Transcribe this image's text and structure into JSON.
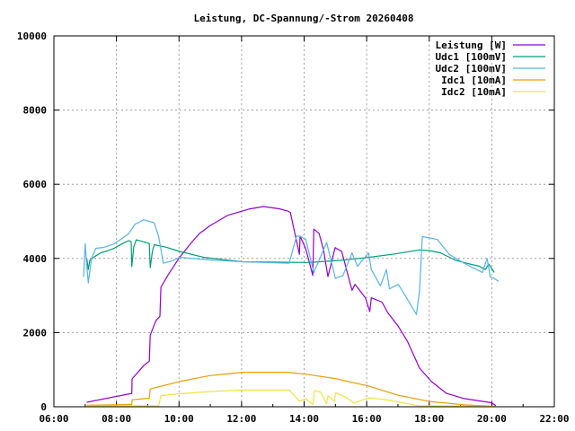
{
  "chart_data": {
    "type": "line",
    "title": "Leistung, DC-Spannung/-Strom 20260408",
    "xlabel": "",
    "ylabel": "",
    "xlim": [
      6,
      22
    ],
    "ylim": [
      0,
      10000
    ],
    "grid": true,
    "legend_position": "top-right",
    "x_ticks": [
      {
        "value": 6,
        "label": "06:00"
      },
      {
        "value": 8,
        "label": "08:00"
      },
      {
        "value": 10,
        "label": "10:00"
      },
      {
        "value": 12,
        "label": "12:00"
      },
      {
        "value": 14,
        "label": "14:00"
      },
      {
        "value": 16,
        "label": "16:00"
      },
      {
        "value": 18,
        "label": "18:00"
      },
      {
        "value": 20,
        "label": "20:00"
      },
      {
        "value": 22,
        "label": "22:00"
      }
    ],
    "y_ticks": [
      {
        "value": 0,
        "label": "0"
      },
      {
        "value": 2000,
        "label": "2000"
      },
      {
        "value": 4000,
        "label": "4000"
      },
      {
        "value": 6000,
        "label": "6000"
      },
      {
        "value": 8000,
        "label": "8000"
      },
      {
        "value": 10000,
        "label": "10000"
      }
    ],
    "series": [
      {
        "name": "Leistung [W]",
        "color": "#9400d3",
        "points": [
          [
            7.05,
            120
          ],
          [
            8.49,
            360
          ],
          [
            8.5,
            750
          ],
          [
            8.87,
            1110
          ],
          [
            9.05,
            1230
          ],
          [
            9.08,
            1930
          ],
          [
            9.26,
            2320
          ],
          [
            9.39,
            2440
          ],
          [
            9.42,
            3220
          ],
          [
            9.64,
            3540
          ],
          [
            10.02,
            4030
          ],
          [
            10.4,
            4430
          ],
          [
            10.65,
            4670
          ],
          [
            10.97,
            4870
          ],
          [
            11.55,
            5160
          ],
          [
            12.23,
            5330
          ],
          [
            12.7,
            5400
          ],
          [
            13.2,
            5340
          ],
          [
            13.47,
            5280
          ],
          [
            13.56,
            5240
          ],
          [
            13.66,
            4840
          ],
          [
            13.85,
            4110
          ],
          [
            13.87,
            4600
          ],
          [
            14.05,
            4270
          ],
          [
            14.28,
            3540
          ],
          [
            14.31,
            4790
          ],
          [
            14.48,
            4670
          ],
          [
            14.62,
            4230
          ],
          [
            14.76,
            3510
          ],
          [
            14.99,
            4290
          ],
          [
            15.2,
            4190
          ],
          [
            15.53,
            3140
          ],
          [
            15.63,
            3300
          ],
          [
            15.96,
            2940
          ],
          [
            16.1,
            2570
          ],
          [
            16.15,
            2940
          ],
          [
            16.49,
            2820
          ],
          [
            16.68,
            2530
          ],
          [
            17.01,
            2170
          ],
          [
            17.3,
            1770
          ],
          [
            17.69,
            1040
          ],
          [
            18.07,
            680
          ],
          [
            18.55,
            360
          ],
          [
            19.12,
            220
          ],
          [
            19.99,
            110
          ],
          [
            20.13,
            30
          ]
        ]
      },
      {
        "name": "Udc1 [100mV]",
        "color": "#009e73",
        "points": [
          [
            7.05,
            4000
          ],
          [
            7.1,
            3700
          ],
          [
            7.15,
            3950
          ],
          [
            7.3,
            4050
          ],
          [
            7.5,
            4150
          ],
          [
            7.7,
            4200
          ],
          [
            7.92,
            4270
          ],
          [
            8.15,
            4380
          ],
          [
            8.39,
            4480
          ],
          [
            8.47,
            4450
          ],
          [
            8.49,
            3780
          ],
          [
            8.55,
            4300
          ],
          [
            8.63,
            4500
          ],
          [
            8.9,
            4440
          ],
          [
            9.05,
            4400
          ],
          [
            9.08,
            3750
          ],
          [
            9.15,
            4200
          ],
          [
            9.21,
            4370
          ],
          [
            9.6,
            4300
          ],
          [
            10.02,
            4190
          ],
          [
            10.79,
            4030
          ],
          [
            12.03,
            3910
          ],
          [
            12.9,
            3900
          ],
          [
            14.05,
            3890
          ],
          [
            14.33,
            3900
          ],
          [
            15.2,
            3950
          ],
          [
            16.06,
            4030
          ],
          [
            16.9,
            4120
          ],
          [
            17.69,
            4230
          ],
          [
            18.0,
            4210
          ],
          [
            18.36,
            4150
          ],
          [
            18.84,
            3950
          ],
          [
            19.2,
            3870
          ],
          [
            19.6,
            3790
          ],
          [
            19.8,
            3700
          ],
          [
            19.9,
            3850
          ],
          [
            20.08,
            3620
          ]
        ]
      },
      {
        "name": "Udc2 [100mV]",
        "color": "#56b4e9",
        "points": [
          [
            6.95,
            3500
          ],
          [
            7.0,
            4400
          ],
          [
            7.05,
            3800
          ],
          [
            7.1,
            3340
          ],
          [
            7.2,
            4000
          ],
          [
            7.34,
            4270
          ],
          [
            7.6,
            4300
          ],
          [
            7.92,
            4390
          ],
          [
            8.2,
            4550
          ],
          [
            8.39,
            4670
          ],
          [
            8.59,
            4920
          ],
          [
            8.87,
            5040
          ],
          [
            9.05,
            5000
          ],
          [
            9.21,
            4960
          ],
          [
            9.35,
            4590
          ],
          [
            9.5,
            3870
          ],
          [
            9.83,
            3950
          ],
          [
            10.02,
            4030
          ],
          [
            11.0,
            3960
          ],
          [
            12.03,
            3910
          ],
          [
            13.52,
            3870
          ],
          [
            13.76,
            4600
          ],
          [
            13.85,
            4600
          ],
          [
            14.05,
            4520
          ],
          [
            14.31,
            3620
          ],
          [
            14.72,
            4430
          ],
          [
            15.0,
            3460
          ],
          [
            15.24,
            3540
          ],
          [
            15.53,
            4150
          ],
          [
            15.71,
            3790
          ],
          [
            16.06,
            4150
          ],
          [
            16.15,
            3700
          ],
          [
            16.44,
            3260
          ],
          [
            16.63,
            3700
          ],
          [
            16.73,
            3180
          ],
          [
            17.01,
            3300
          ],
          [
            17.3,
            2900
          ],
          [
            17.59,
            2490
          ],
          [
            17.69,
            3140
          ],
          [
            17.78,
            4590
          ],
          [
            18.26,
            4510
          ],
          [
            18.64,
            4110
          ],
          [
            19.12,
            3870
          ],
          [
            19.7,
            3620
          ],
          [
            19.85,
            4000
          ],
          [
            19.95,
            3500
          ],
          [
            20.08,
            3460
          ],
          [
            20.22,
            3380
          ]
        ]
      },
      {
        "name": "Idc1 [10mA]",
        "color": "#e69f00",
        "points": [
          [
            7.05,
            40
          ],
          [
            8.49,
            60
          ],
          [
            8.5,
            190
          ],
          [
            9.05,
            230
          ],
          [
            9.08,
            480
          ],
          [
            10.02,
            680
          ],
          [
            10.98,
            840
          ],
          [
            12.03,
            930
          ],
          [
            13.47,
            930
          ],
          [
            14.05,
            880
          ],
          [
            15.0,
            760
          ],
          [
            16.06,
            560
          ],
          [
            17.01,
            310
          ],
          [
            18.02,
            140
          ],
          [
            19.12,
            50
          ],
          [
            20.13,
            10
          ]
        ]
      },
      {
        "name": "Idc2 [10mA]",
        "color": "#f0e442",
        "points": [
          [
            7.05,
            20
          ],
          [
            9.35,
            30
          ],
          [
            9.42,
            300
          ],
          [
            10.02,
            350
          ],
          [
            10.97,
            410
          ],
          [
            12.03,
            450
          ],
          [
            13.52,
            450
          ],
          [
            13.85,
            150
          ],
          [
            14.05,
            220
          ],
          [
            14.28,
            60
          ],
          [
            14.33,
            440
          ],
          [
            14.52,
            400
          ],
          [
            14.72,
            80
          ],
          [
            14.76,
            300
          ],
          [
            14.98,
            150
          ],
          [
            15.0,
            380
          ],
          [
            15.3,
            270
          ],
          [
            15.6,
            100
          ],
          [
            16.06,
            240
          ],
          [
            16.5,
            200
          ],
          [
            17.01,
            130
          ],
          [
            17.63,
            30
          ],
          [
            20.13,
            10
          ]
        ]
      }
    ]
  }
}
